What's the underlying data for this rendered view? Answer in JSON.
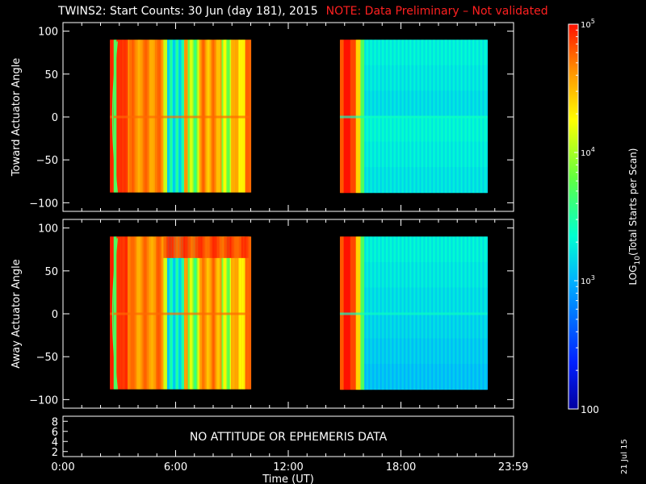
{
  "title": {
    "main": "TWINS2: Start Counts: 30 Jun (day 181), 2015",
    "note": "NOTE: Data Preliminary – Not validated",
    "note_color": "#ff2020"
  },
  "datestamp": "21 Jul 15",
  "chart_data": [
    {
      "type": "heatmap",
      "panel": "toward",
      "ylabel": "Toward Actuator Angle",
      "ylim": [
        -110,
        110
      ],
      "yticks": [
        "100",
        "50",
        "0",
        "−50",
        "−100"
      ],
      "ytick_values": [
        100,
        50,
        0,
        -50,
        -100
      ],
      "xlim": [
        0,
        24
      ],
      "data_intervals_hours": [
        [
          2.5,
          10.0
        ],
        [
          14.75,
          22.6
        ]
      ],
      "angle_range": [
        -88,
        90
      ],
      "color_log10_description": "first interval mostly 4.6–5.0 (orange/yellow) with cyan bands near 5.5–6.5 h; second interval 5.0 near start then 3.0–3.3 (blue)"
    },
    {
      "type": "heatmap",
      "panel": "away",
      "ylabel": "Away Actuator Angle",
      "ylim": [
        -110,
        110
      ],
      "yticks": [
        "100",
        "50",
        "0",
        "−50",
        "−100"
      ],
      "ytick_values": [
        100,
        50,
        0,
        -50,
        -100
      ],
      "xlim": [
        0,
        24
      ],
      "data_intervals_hours": [
        [
          2.5,
          10.0
        ],
        [
          14.75,
          22.6
        ]
      ],
      "angle_range": [
        -88,
        90
      ]
    },
    {
      "type": "line",
      "panel": "attitude",
      "yticks": [
        "8",
        "6",
        "4",
        "2"
      ],
      "ytick_values": [
        8,
        6,
        4,
        2
      ],
      "ylim": [
        1,
        9
      ],
      "message": "NO ATTITUDE OR EPHEMERIS DATA"
    }
  ],
  "x_axis": {
    "label": "Time (UT)",
    "ticks": [
      "0:00",
      "6:00",
      "12:00",
      "18:00",
      "23:59"
    ],
    "tick_hours": [
      0,
      6,
      12,
      18,
      23.983
    ]
  },
  "colorbar": {
    "label": "LOG10(Total Starts per Scan)",
    "ticks": [
      "10^5",
      "10^4",
      "10^3",
      "100"
    ],
    "tick_log_values": [
      5,
      4,
      3,
      2
    ],
    "range_log": [
      2,
      5
    ]
  }
}
